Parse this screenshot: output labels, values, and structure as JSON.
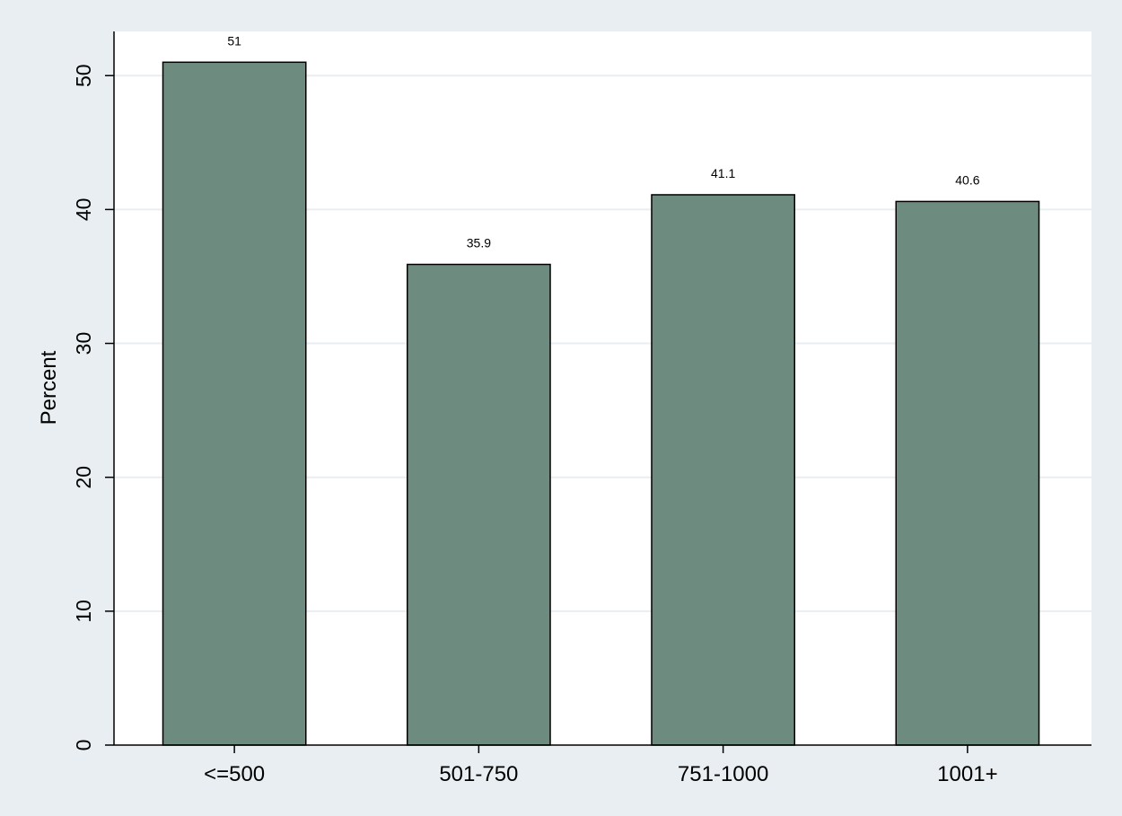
{
  "chart_data": {
    "type": "bar",
    "title": "",
    "xlabel": "",
    "ylabel": "Percent",
    "categories": [
      "<=500",
      "501-750",
      "751-1000",
      "1001+"
    ],
    "values": [
      51,
      35.9,
      41.1,
      40.6
    ],
    "data_labels": [
      "51",
      "35.9",
      "41.1",
      "40.6"
    ],
    "ylim": [
      0,
      53.3
    ],
    "yticks": [
      0,
      10,
      20,
      30,
      40,
      50
    ],
    "ytick_labels": [
      "0",
      "10",
      "20",
      "30",
      "40",
      "50"
    ],
    "grid": true,
    "legend": "none",
    "colors": {
      "bar_fill": "#6e8b7f",
      "bar_stroke": "#000000",
      "plot_background": "#ffffff",
      "page_background": "#e8eef1",
      "gridline": "#e8eef1",
      "axis": "#000000"
    }
  }
}
